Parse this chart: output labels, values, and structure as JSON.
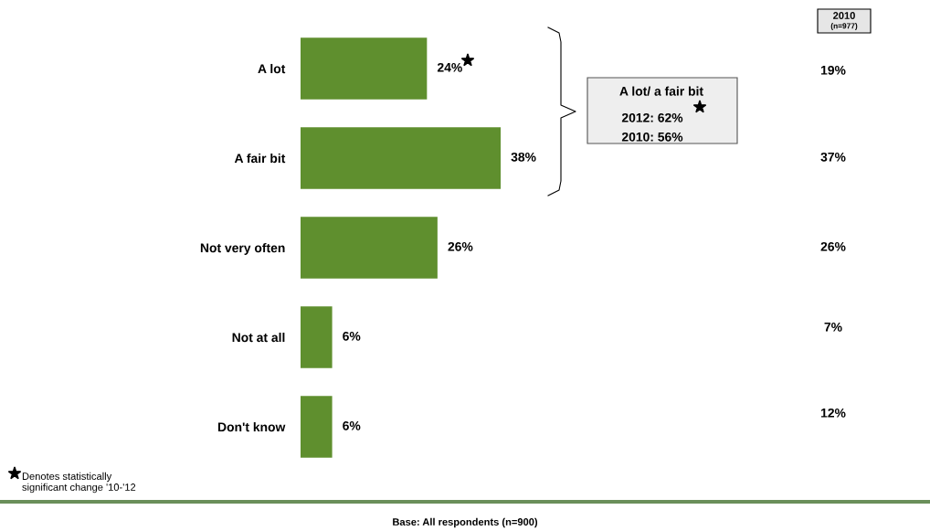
{
  "chart_data": {
    "type": "bar",
    "orientation": "horizontal",
    "categories": [
      "A lot",
      "A fair bit",
      "Not very often",
      "Not at all",
      "Don't know"
    ],
    "values": [
      24,
      38,
      26,
      6,
      6
    ],
    "value_labels": [
      "24%",
      "38%",
      "26%",
      "6%",
      "6%"
    ],
    "color": "#5f8f2e",
    "tick_labels": "y",
    "grid": false,
    "legend": false,
    "annotations": [
      "2010",
      "(n=977)",
      "19%",
      "37%",
      "26%",
      "7%",
      "12%",
      "A lot/ a fair bit",
      "2012: 62%",
      "2010: 56%",
      "Denotes statistically\nsignificant change '10-'12",
      "Base: All respondents (n=900)"
    ]
  }
}
